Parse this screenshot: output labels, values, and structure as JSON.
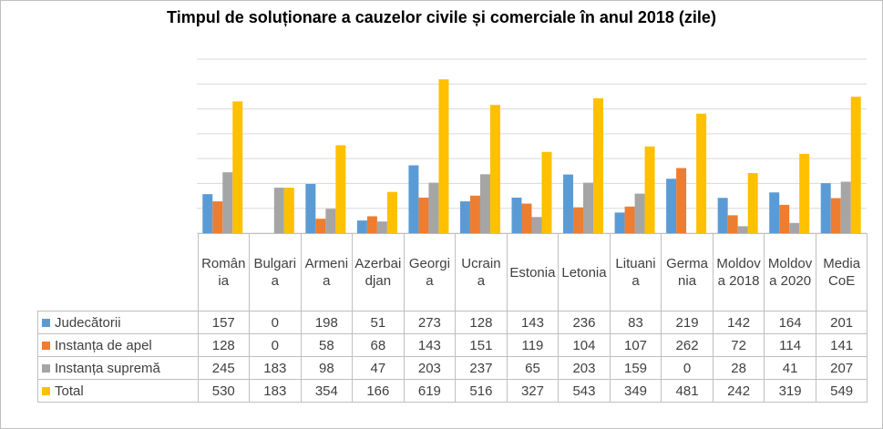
{
  "chart_data": {
    "type": "bar",
    "title": "Timpul de soluționare a cauzelor civile și comerciale în anul 2018 (zile)",
    "categories": [
      "România",
      "Bulgaria",
      "Armenia",
      "Azerbaidjan",
      "Georgia",
      "Ucraina",
      "Estonia",
      "Letonia",
      "Lituania",
      "Germania",
      "Moldova 2018",
      "Moldova 2020",
      "Media CoE"
    ],
    "series": [
      {
        "name": "Judecătorii",
        "color": "#5b9bd5",
        "values": [
          157,
          0,
          198,
          51,
          273,
          128,
          143,
          236,
          83,
          219,
          142,
          164,
          201
        ]
      },
      {
        "name": "Instanța de apel",
        "color": "#ed7d31",
        "values": [
          128,
          0,
          58,
          68,
          143,
          151,
          119,
          104,
          107,
          262,
          72,
          114,
          141
        ]
      },
      {
        "name": "Instanța supremă",
        "color": "#a5a5a5",
        "values": [
          245,
          183,
          98,
          47,
          203,
          237,
          65,
          203,
          159,
          0,
          28,
          41,
          207
        ]
      },
      {
        "name": "Total",
        "color": "#ffc000",
        "values": [
          530,
          183,
          354,
          166,
          619,
          516,
          327,
          543,
          349,
          481,
          242,
          319,
          549
        ]
      }
    ],
    "ylim": [
      0,
      700
    ],
    "yticks": [
      0,
      100,
      200,
      300,
      400,
      500,
      600,
      700
    ],
    "grid": true
  }
}
